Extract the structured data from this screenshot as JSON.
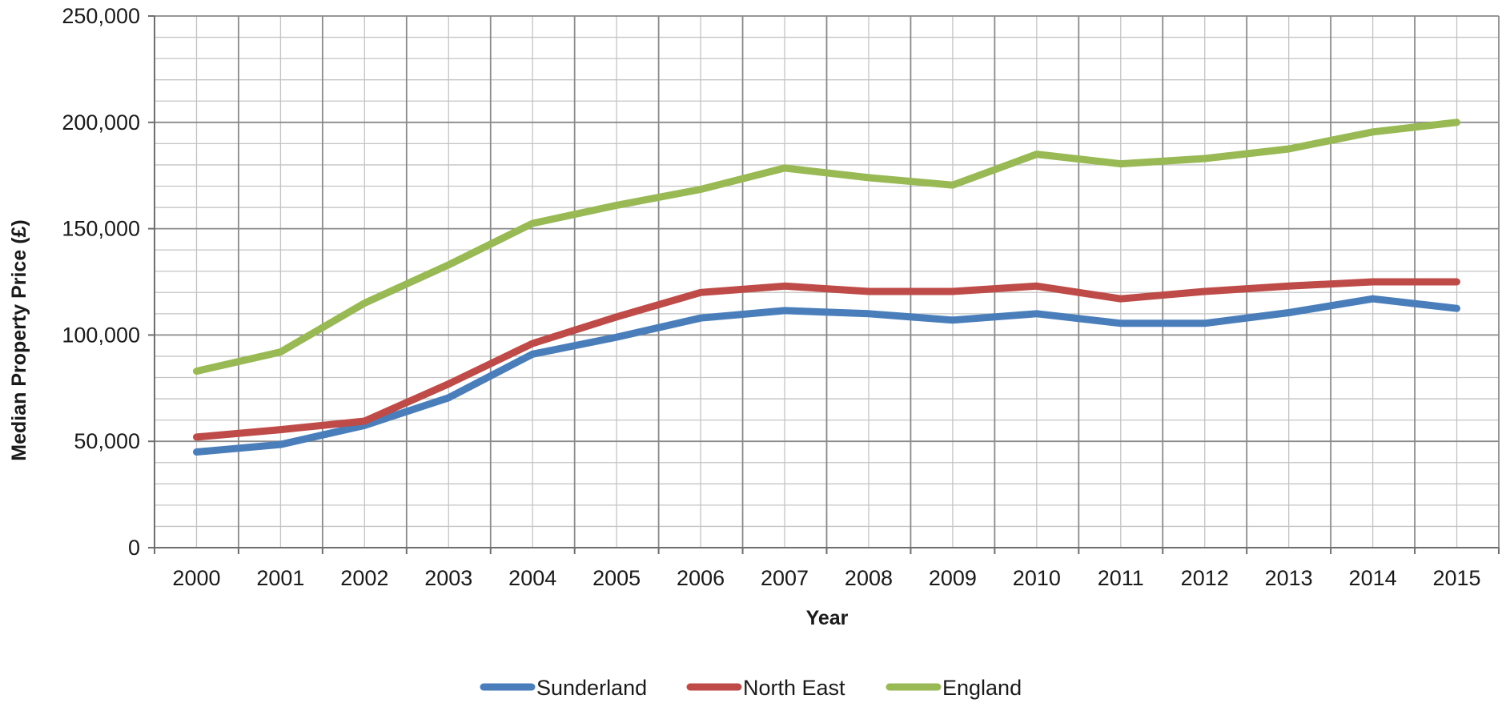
{
  "chart_data": {
    "type": "line",
    "title": "",
    "xlabel": "Year",
    "ylabel": "Median Property Price (£)",
    "categories": [
      "2000",
      "2001",
      "2002",
      "2003",
      "2004",
      "2005",
      "2006",
      "2007",
      "2008",
      "2009",
      "2010",
      "2011",
      "2012",
      "2013",
      "2014",
      "2015"
    ],
    "y_tick_labels": [
      "0",
      "50,000",
      "100,000",
      "150,000",
      "200,000",
      "250,000"
    ],
    "ylim": [
      0,
      250000
    ],
    "grid": true,
    "legend_position": "bottom",
    "series": [
      {
        "name": "Sunderland",
        "color": "#4a7ebb",
        "values": [
          45000,
          48500,
          57500,
          70500,
          91000,
          99000,
          108000,
          111500,
          110000,
          107000,
          110000,
          105500,
          105500,
          110500,
          117000,
          112500
        ]
      },
      {
        "name": "North East",
        "color": "#be4b48",
        "values": [
          52000,
          55500,
          59500,
          77000,
          96000,
          108500,
          120000,
          123000,
          120500,
          120500,
          123000,
          117000,
          120500,
          123000,
          125000,
          125000
        ]
      },
      {
        "name": "England",
        "color": "#98b954",
        "values": [
          83000,
          92000,
          115000,
          133000,
          152500,
          161000,
          168500,
          178500,
          174000,
          170500,
          185000,
          180500,
          183000,
          187500,
          195500,
          200000
        ]
      }
    ]
  }
}
